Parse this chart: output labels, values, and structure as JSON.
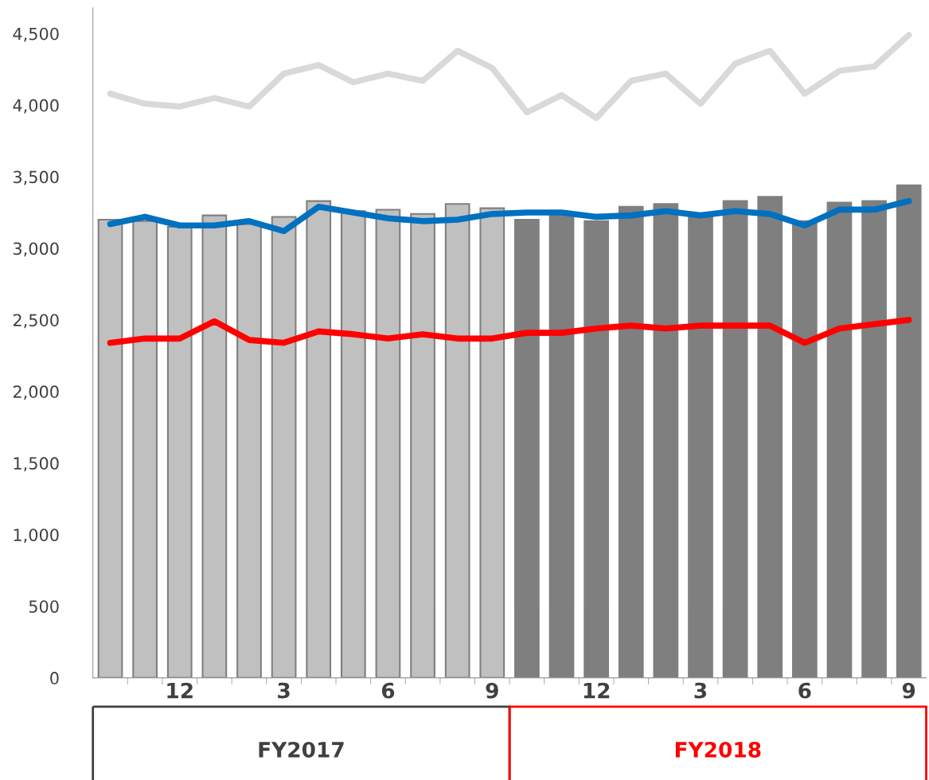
{
  "chart_data": {
    "type": "bar",
    "categories": [
      null,
      null,
      "12",
      null,
      null,
      "3",
      null,
      null,
      "6",
      null,
      null,
      "9",
      null,
      null,
      "12",
      null,
      null,
      "3",
      null,
      null,
      "6",
      null,
      null,
      "9"
    ],
    "series": [
      {
        "colors": [
          "#c0c0c0",
          "#c0c0c0",
          "#c0c0c0",
          "#c0c0c0",
          "#c0c0c0",
          "#c0c0c0",
          "#c0c0c0",
          "#c0c0c0",
          "#c0c0c0",
          "#c0c0c0",
          "#c0c0c0",
          "#c0c0c0",
          "#7f7f7f",
          "#7f7f7f",
          "#7f7f7f",
          "#7f7f7f",
          "#7f7f7f",
          "#7f7f7f",
          "#7f7f7f",
          "#7f7f7f",
          "#7f7f7f",
          "#7f7f7f",
          "#7f7f7f",
          "#7f7f7f"
        ],
        "values": [
          3200,
          3190,
          3150,
          3230,
          3170,
          3220,
          3330,
          3260,
          3270,
          3240,
          3310,
          3280,
          3200,
          3230,
          3190,
          3290,
          3310,
          3230,
          3330,
          3360,
          3190,
          3320,
          3330,
          3440
        ]
      },
      {
        "type": "line",
        "color": "#d9d9d9",
        "values": [
          4080,
          4010,
          3990,
          4050,
          3990,
          4220,
          4280,
          4160,
          4220,
          4170,
          4380,
          4260,
          3950,
          4070,
          3910,
          4170,
          4220,
          4010,
          4290,
          4380,
          4080,
          4240,
          4270,
          4490
        ]
      },
      {
        "type": "line",
        "color": "#0070c0",
        "values": [
          3170,
          3220,
          3160,
          3160,
          3190,
          3120,
          3290,
          3250,
          3210,
          3190,
          3200,
          3240,
          3250,
          3250,
          3220,
          3230,
          3260,
          3230,
          3260,
          3240,
          3160,
          3270,
          3270,
          3330
        ]
      },
      {
        "type": "line",
        "color": "#ff0000",
        "values": [
          2340,
          2370,
          2370,
          2490,
          2360,
          2340,
          2420,
          2400,
          2370,
          2400,
          2370,
          2370,
          2410,
          2410,
          2440,
          2460,
          2440,
          2460,
          2460,
          2460,
          2340,
          2440,
          2470,
          2500
        ]
      }
    ],
    "ylim": [
      0,
      4680
    ],
    "yticks": [
      0,
      500,
      {
        "value": 1000,
        "label": "1,000"
      },
      {
        "value": 1500,
        "label": "1,500"
      },
      {
        "value": 2000,
        "label": "2,000"
      },
      {
        "value": 2500,
        "label": "2,500"
      },
      {
        "value": 3000,
        "label": "3,000"
      },
      {
        "value": 3500,
        "label": "3,500"
      },
      {
        "value": 4000,
        "label": "4,000"
      },
      {
        "value": 4500,
        "label": "4,500"
      }
    ],
    "grid": false,
    "legend": false,
    "line_style": "solid",
    "marker": "none",
    "annotations": [
      "FY2017",
      "FY2018"
    ]
  }
}
